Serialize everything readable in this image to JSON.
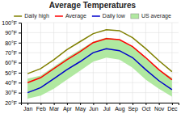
{
  "chart_data": {
    "type": "line",
    "title": "Average Temperatures",
    "categories": [
      "Jan",
      "Feb",
      "Mar",
      "Apr",
      "May",
      "Jun",
      "Jul",
      "Aug",
      "Sep",
      "Oct",
      "Nov",
      "Dec"
    ],
    "series": [
      {
        "name": "Daily high",
        "color": "#808000",
        "values": [
          49,
          54,
          63,
          73,
          81,
          89,
          93,
          92,
          85,
          74,
          62,
          51
        ]
      },
      {
        "name": "Average",
        "color": "#ff0000",
        "values": [
          40,
          45,
          54,
          63,
          71,
          80,
          84,
          83,
          76,
          65,
          53,
          43
        ]
      },
      {
        "name": "Daily low",
        "color": "#0000cc",
        "values": [
          30,
          35,
          44,
          53,
          61,
          70,
          74,
          72,
          65,
          53,
          42,
          33
        ]
      },
      {
        "name": "US average",
        "type": "band",
        "color": "#b0e8a0",
        "low": [
          24,
          27,
          34,
          43,
          52,
          61,
          65,
          63,
          55,
          43,
          34,
          26
        ],
        "high": [
          44,
          47,
          56,
          65,
          73,
          81,
          85,
          83,
          76,
          65,
          53,
          45
        ]
      }
    ],
    "ylim": [
      20,
      100
    ],
    "yticks": [
      {
        "value": 20,
        "label": "20°F"
      },
      {
        "value": 30,
        "label": "30°F"
      },
      {
        "value": 40,
        "label": "40°F"
      },
      {
        "value": 50,
        "label": "50°F"
      },
      {
        "value": 60,
        "label": "60°F"
      },
      {
        "value": 70,
        "label": "70°F"
      },
      {
        "value": 80,
        "label": "80°F"
      },
      {
        "value": 90,
        "label": "90°F"
      },
      {
        "value": 100,
        "label": "100°F"
      }
    ],
    "grid": true,
    "legend": "top"
  }
}
